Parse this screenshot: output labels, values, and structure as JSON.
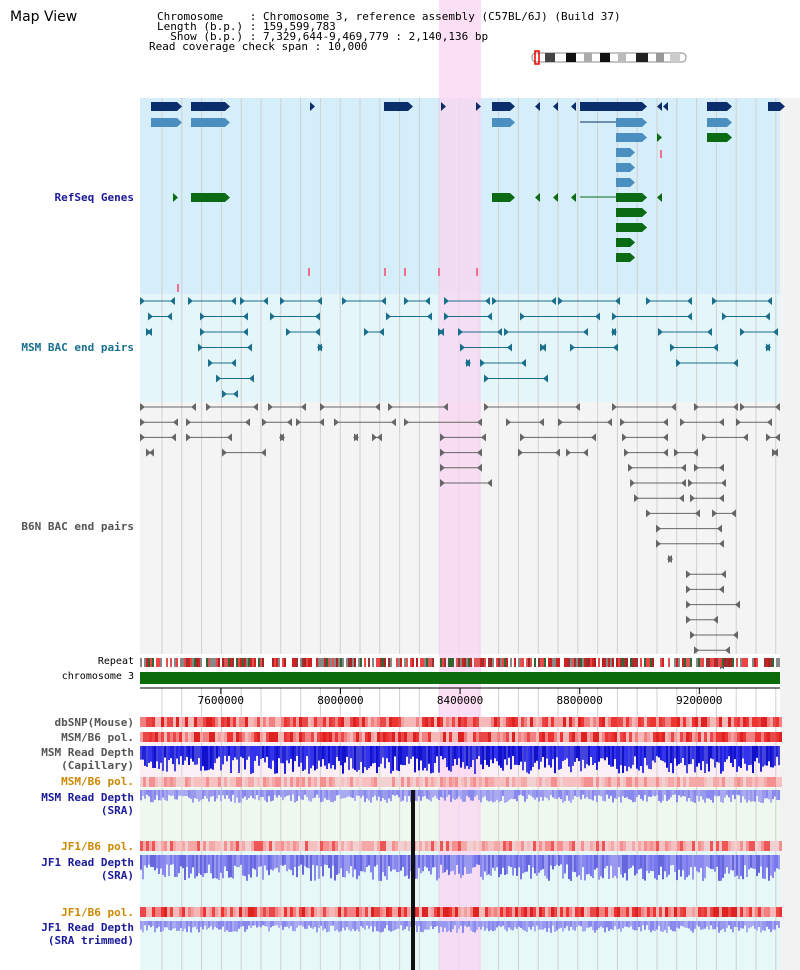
{
  "title": "Map View",
  "info": {
    "chromosome": "Chromosome    : Chromosome 3, reference assembly (C57BL/6J) (Build 37)",
    "length": "Length (b.p.) : 159,599,783",
    "show": "  Show (b.p.) : 7,329,644-9,469,779 : 2,140,136 bp",
    "coverage": "Read coverage check span : 10,000"
  },
  "tracks": {
    "refseq": "RefSeq Genes",
    "msm_bac": "MSM BAC end pairs",
    "b6n_bac": "B6N BAC end pairs",
    "repeat": "Repeat",
    "chromosome": "chromosome 3",
    "dbsnp": "dbSNP(Mouse)",
    "msmb6_pol_1": "MSM/B6 pol.",
    "msm_depth_cap_1": "MSM Read Depth",
    "msm_depth_cap_2": "(Capillary)",
    "msmb6_pol_2": "MSM/B6 pol.",
    "msm_depth_sra_1": "MSM Read Depth",
    "msm_depth_sra_2": "(SRA)",
    "jf1b6_pol_1": "JF1/B6 pol.",
    "jf1_depth_sra_1": "JF1 Read Depth",
    "jf1_depth_sra_2": "(SRA)",
    "jf1b6_pol_2": "JF1/B6 pol.",
    "jf1_depth_trim_1": "JF1 Read Depth",
    "jf1_depth_trim_2": "(SRA trimmed)"
  },
  "axis": {
    "ticks": [
      "7600000",
      "8000000",
      "8400000",
      "8800000",
      "9200000"
    ],
    "range": [
      7329644,
      9469779
    ]
  },
  "colors": {
    "refseq_bg": "#d6eef9",
    "msm_bg": "#e4f6fa",
    "highlight": "#f9d6f2",
    "dark_gene": "#0b2d6b",
    "mid_gene": "#4a8fc0",
    "green_gene": "#0b6b14",
    "msm_line": "#1a6f8c",
    "b6n_line": "#666666",
    "chromosome_bar": "#0b6b0b",
    "depth_blue": "#2222dd",
    "depth_lavender": "#7777ee",
    "pol_red": "#ee3333",
    "pol_orange": "#cc8800",
    "label_navy": "#1a1a99",
    "label_teal": "#1a6f8c",
    "label_gray": "#555555"
  }
}
